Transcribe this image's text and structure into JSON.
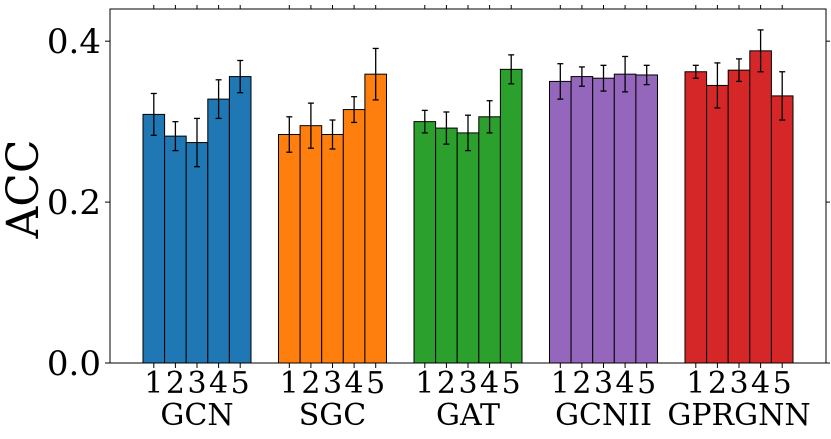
{
  "chart_data": {
    "type": "bar",
    "title": "",
    "xlabel": "",
    "ylabel": "ACC",
    "ylim": [
      0.0,
      0.44
    ],
    "yticks": [
      0.0,
      0.2,
      0.4
    ],
    "ytick_labels": [
      "0.0",
      "0.2",
      "0.4"
    ],
    "grid": false,
    "sub_labels": [
      "1",
      "2",
      "3",
      "4",
      "5"
    ],
    "groups": [
      {
        "name": "GCN",
        "color": "#1f77b4",
        "values": [
          0.309,
          0.282,
          0.274,
          0.328,
          0.356
        ],
        "errors": [
          0.026,
          0.018,
          0.03,
          0.024,
          0.02
        ]
      },
      {
        "name": "SGC",
        "color": "#ff7f0e",
        "values": [
          0.284,
          0.295,
          0.284,
          0.315,
          0.359
        ],
        "errors": [
          0.022,
          0.028,
          0.018,
          0.016,
          0.032
        ]
      },
      {
        "name": "GAT",
        "color": "#2ca02c",
        "values": [
          0.3,
          0.292,
          0.286,
          0.306,
          0.365
        ],
        "errors": [
          0.014,
          0.02,
          0.022,
          0.02,
          0.018
        ]
      },
      {
        "name": "GCNII",
        "color": "#9467bd",
        "values": [
          0.35,
          0.356,
          0.354,
          0.359,
          0.358
        ],
        "errors": [
          0.022,
          0.012,
          0.016,
          0.022,
          0.012
        ]
      },
      {
        "name": "GPRGNN",
        "color": "#d62728",
        "values": [
          0.362,
          0.345,
          0.364,
          0.388,
          0.332
        ],
        "errors": [
          0.008,
          0.028,
          0.014,
          0.026,
          0.03
        ]
      }
    ]
  }
}
